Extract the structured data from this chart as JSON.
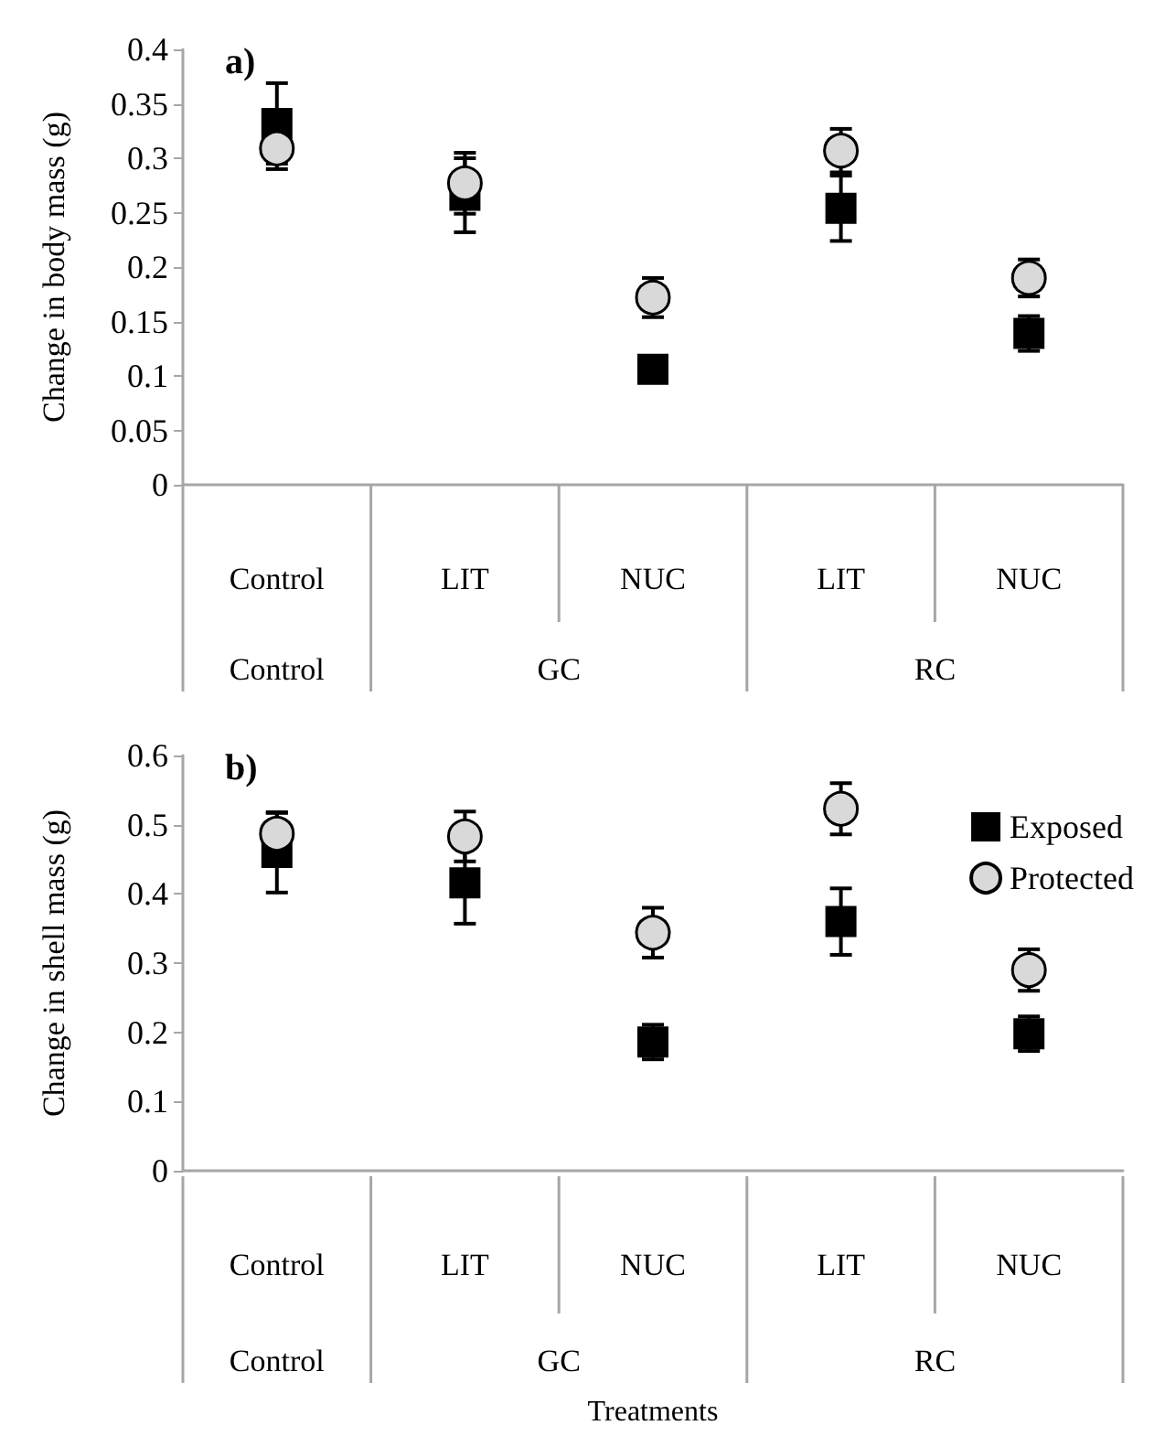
{
  "chart_data": [
    {
      "type": "scatter",
      "title": "a)",
      "ylabel": "Change in body mass (g)",
      "categories": [
        "Control",
        "LIT",
        "NUC",
        "LIT",
        "NUC"
      ],
      "annotations": [
        "Control",
        "GC",
        "RC"
      ],
      "ylim": [
        0,
        0.4
      ],
      "yticks": [
        0,
        0.05,
        0.1,
        0.15,
        0.2,
        0.25,
        0.3,
        0.35,
        0.4
      ],
      "grid": false,
      "legend": false,
      "series": [
        {
          "color": "#000000",
          "marker": "square",
          "values": [
            0.332,
            0.266,
            0.106,
            0.254,
            0.139
          ],
          "errors": [
            0.037,
            0.034,
            0.01,
            0.03,
            0.016
          ]
        },
        {
          "color": "#d9d9d9",
          "marker": "circle",
          "values": [
            0.309,
            0.277,
            0.172,
            0.307,
            0.19
          ],
          "errors": [
            0.019,
            0.028,
            0.018,
            0.02,
            0.017
          ]
        }
      ]
    },
    {
      "type": "scatter",
      "title": "b)",
      "ylabel": "Change in shell mass (g)",
      "xlabel": "Treatments",
      "categories": [
        "Control",
        "LIT",
        "NUC",
        "LIT",
        "NUC"
      ],
      "annotations": [
        "Control",
        "GC",
        "RC"
      ],
      "ylim": [
        0,
        0.6
      ],
      "yticks": [
        0,
        0.1,
        0.2,
        0.3,
        0.4,
        0.5,
        0.6
      ],
      "grid": false,
      "legend": "top right",
      "series": [
        {
          "name": "Exposed",
          "color": "#000000",
          "marker": "square",
          "values": [
            0.46,
            0.416,
            0.186,
            0.36,
            0.198
          ],
          "errors": [
            0.058,
            0.059,
            0.025,
            0.048,
            0.025
          ]
        },
        {
          "name": "Protected",
          "color": "#d9d9d9",
          "marker": "circle",
          "values": [
            0.487,
            0.483,
            0.344,
            0.523,
            0.29
          ],
          "errors": [
            0.03,
            0.036,
            0.036,
            0.037,
            0.03
          ]
        }
      ]
    }
  ]
}
